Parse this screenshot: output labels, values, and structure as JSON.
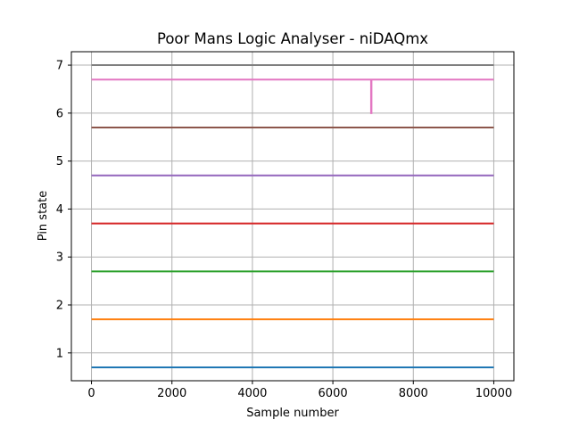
{
  "chart_data": {
    "type": "line",
    "title": "Poor Mans Logic Analyser - niDAQmx",
    "xlabel": "Sample number",
    "ylabel": "Pin state",
    "xlim": [
      -500,
      10500
    ],
    "ylim": [
      0.42,
      7.28
    ],
    "xticks": [
      0,
      2000,
      4000,
      6000,
      8000,
      10000
    ],
    "yticks": [
      1,
      2,
      3,
      4,
      5,
      6,
      7
    ],
    "grid": true,
    "series": [
      {
        "color": "#1f77b4",
        "x": [
          0,
          10000
        ],
        "y": [
          0.7,
          0.7
        ]
      },
      {
        "color": "#ff7f0e",
        "x": [
          0,
          10000
        ],
        "y": [
          1.7,
          1.7
        ]
      },
      {
        "color": "#2ca02c",
        "x": [
          0,
          10000
        ],
        "y": [
          2.7,
          2.7
        ]
      },
      {
        "color": "#d62728",
        "x": [
          0,
          10000
        ],
        "y": [
          3.7,
          3.7
        ]
      },
      {
        "color": "#9467bd",
        "x": [
          0,
          10000
        ],
        "y": [
          4.7,
          4.7
        ]
      },
      {
        "color": "#8c564b",
        "x": [
          0,
          10000
        ],
        "y": [
          5.7,
          5.7
        ]
      },
      {
        "color": "#e377c2",
        "x": [
          0,
          6950,
          6950,
          6960,
          6960,
          10000
        ],
        "y": [
          6.7,
          6.7,
          6.0,
          6.0,
          6.7,
          6.7
        ]
      },
      {
        "color": "#7f7f7f",
        "x": [
          0,
          10000
        ],
        "y": [
          7.0,
          7.0
        ]
      }
    ]
  }
}
